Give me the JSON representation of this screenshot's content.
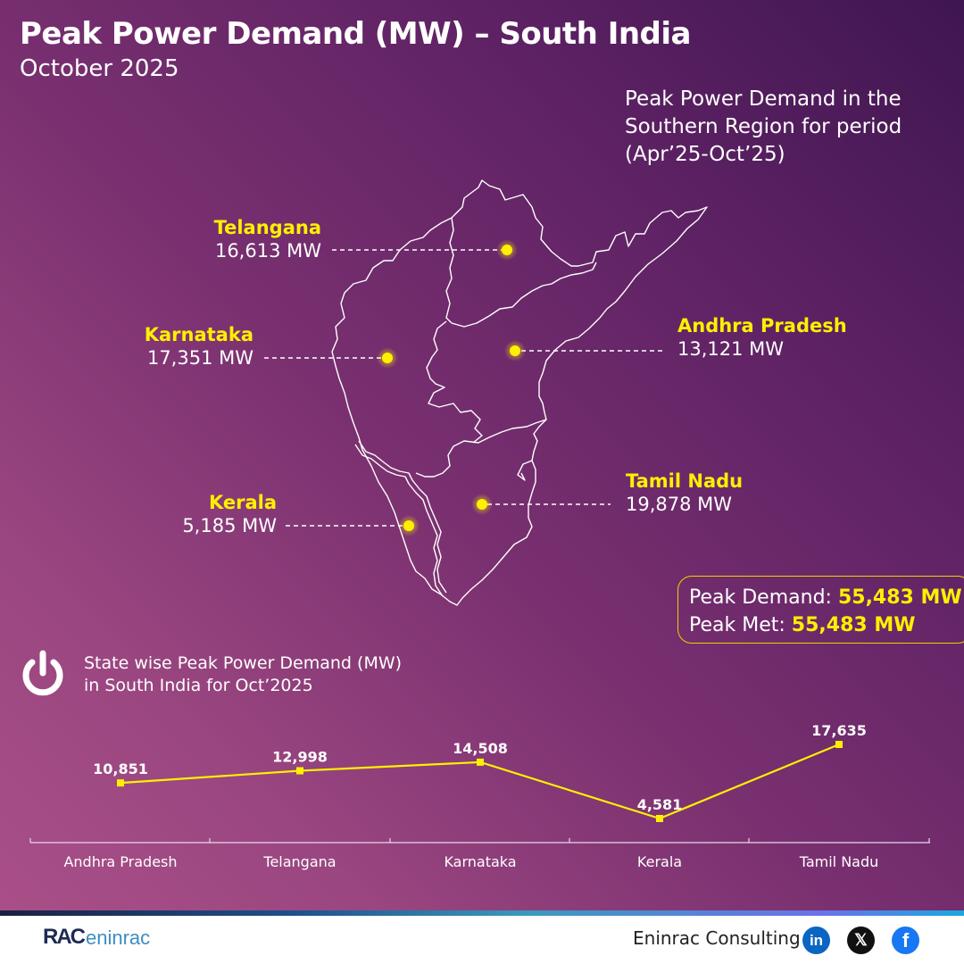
{
  "header": {
    "title": "Peak Power Demand (MW) – South India",
    "subtitle": "October 2025"
  },
  "region_note": {
    "line1": "Peak Power Demand in the",
    "line2": "Southern Region for period",
    "line3": "(Apr’25-Oct’25)"
  },
  "map": {
    "states": [
      {
        "name": "Telangana",
        "value": "16,613 MW"
      },
      {
        "name": "Karnataka",
        "value": "17,351 MW"
      },
      {
        "name": "Andhra Pradesh",
        "value": "13,121 MW"
      },
      {
        "name": "Tamil Nadu",
        "value": "19,878 MW"
      },
      {
        "name": "Kerala",
        "value": "5,185 MW"
      }
    ],
    "dot_color": "#fff000"
  },
  "summary": {
    "demand_label": "Peak Demand:",
    "demand_value": "55,483 MW",
    "met_label": "Peak Met:",
    "met_value": "55,483 MW"
  },
  "chart_header": {
    "icon": "power-icon",
    "line1": "State wise Peak Power Demand (MW)",
    "line2": "in South India for Oct’2025"
  },
  "chart_data": {
    "type": "line",
    "title": "State wise Peak Power Demand (MW) in South India for Oct'2025",
    "categories": [
      "Andhra Pradesh",
      "Telangana",
      "Karnataka",
      "Kerala",
      "Tamil Nadu"
    ],
    "values": [
      10851,
      12998,
      14508,
      4581,
      17635
    ],
    "value_labels": [
      "10,851",
      "12,998",
      "14,508",
      "4,581",
      "17,635"
    ],
    "xlabel": "",
    "ylabel": "MW",
    "grid": false,
    "legend": "none",
    "line_color": "#fff000"
  },
  "footer": {
    "logo_rac": "RAC",
    "logo_text": "eninrac",
    "company": "Eninrac Consulting",
    "social": [
      {
        "icon": "linkedin-icon",
        "glyph": "in"
      },
      {
        "icon": "x-icon",
        "glyph": "𝕏"
      },
      {
        "icon": "facebook-icon",
        "glyph": "f"
      }
    ]
  }
}
